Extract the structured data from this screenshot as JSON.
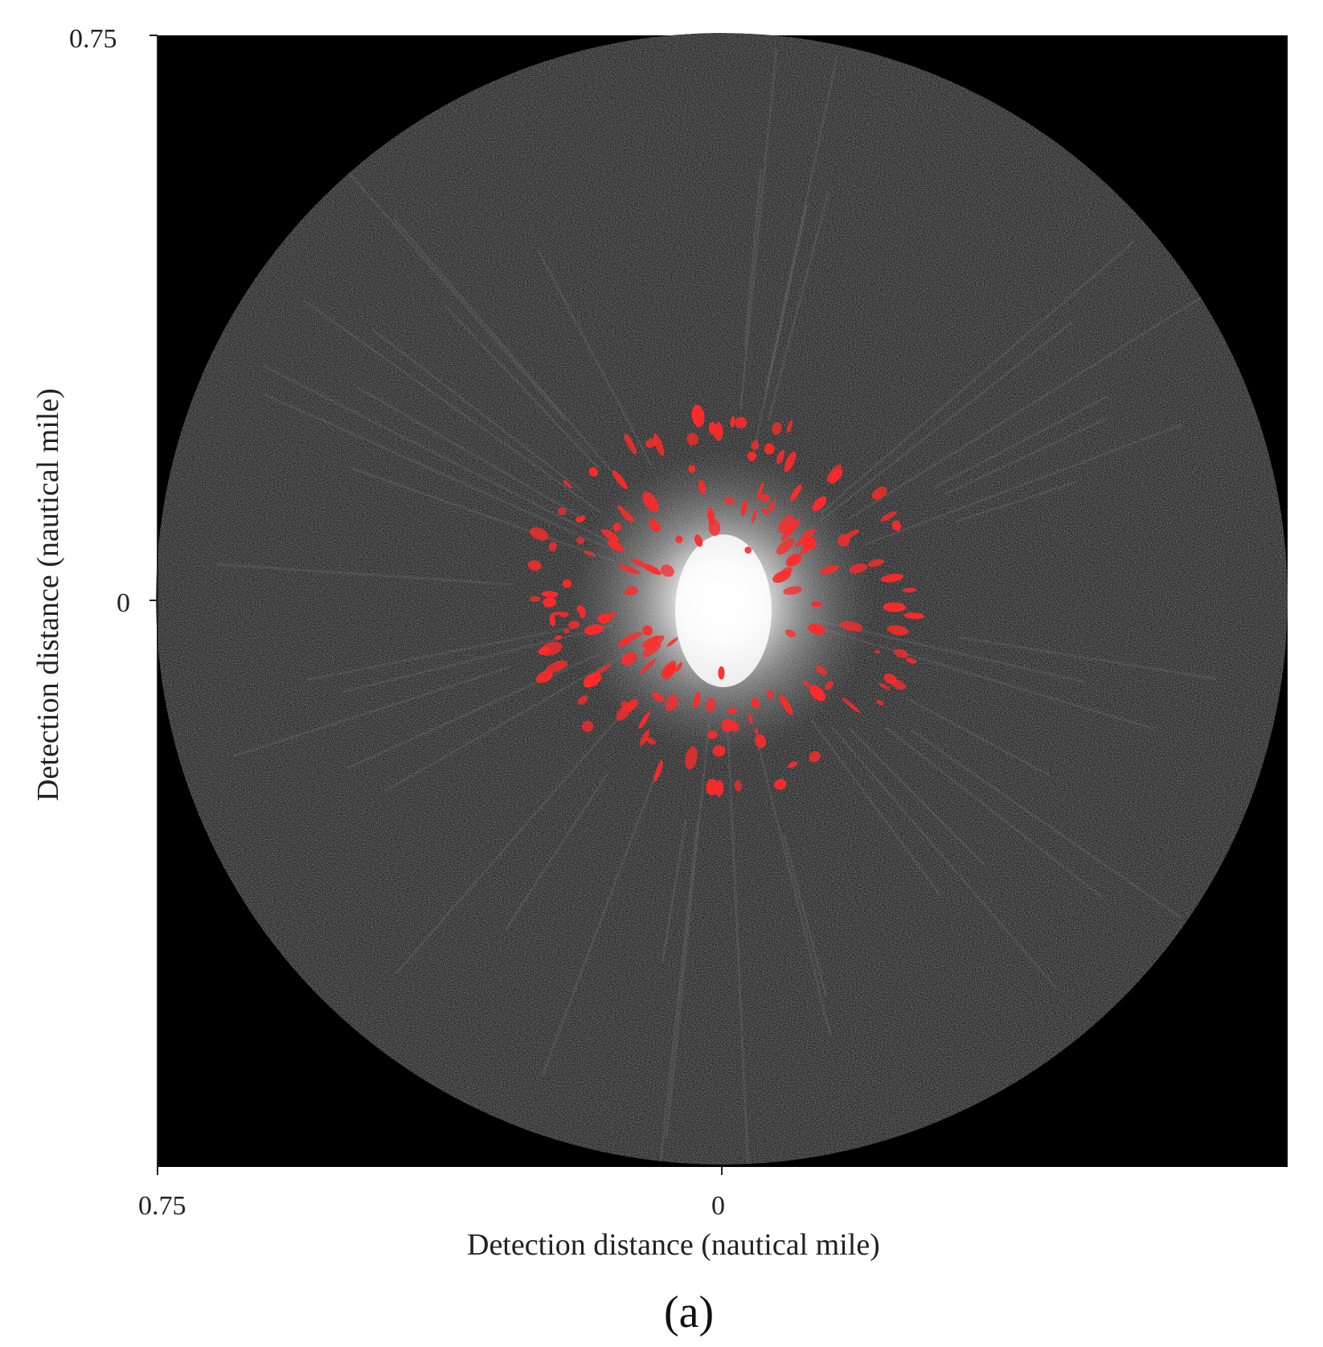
{
  "figure": {
    "panel_label": "(a)",
    "xlabel": "Detection distance (nautical mile)",
    "ylabel": "Detection distance (nautical mile)",
    "x_ticks": [
      "0.75",
      "0"
    ],
    "y_ticks": [
      "0.75",
      "0"
    ],
    "colors": {
      "background": "#000000",
      "radar_noise": "#3a3a3a",
      "clutter_core": "#ffffff",
      "detection_overlay": "#ff2a2a"
    }
  }
}
